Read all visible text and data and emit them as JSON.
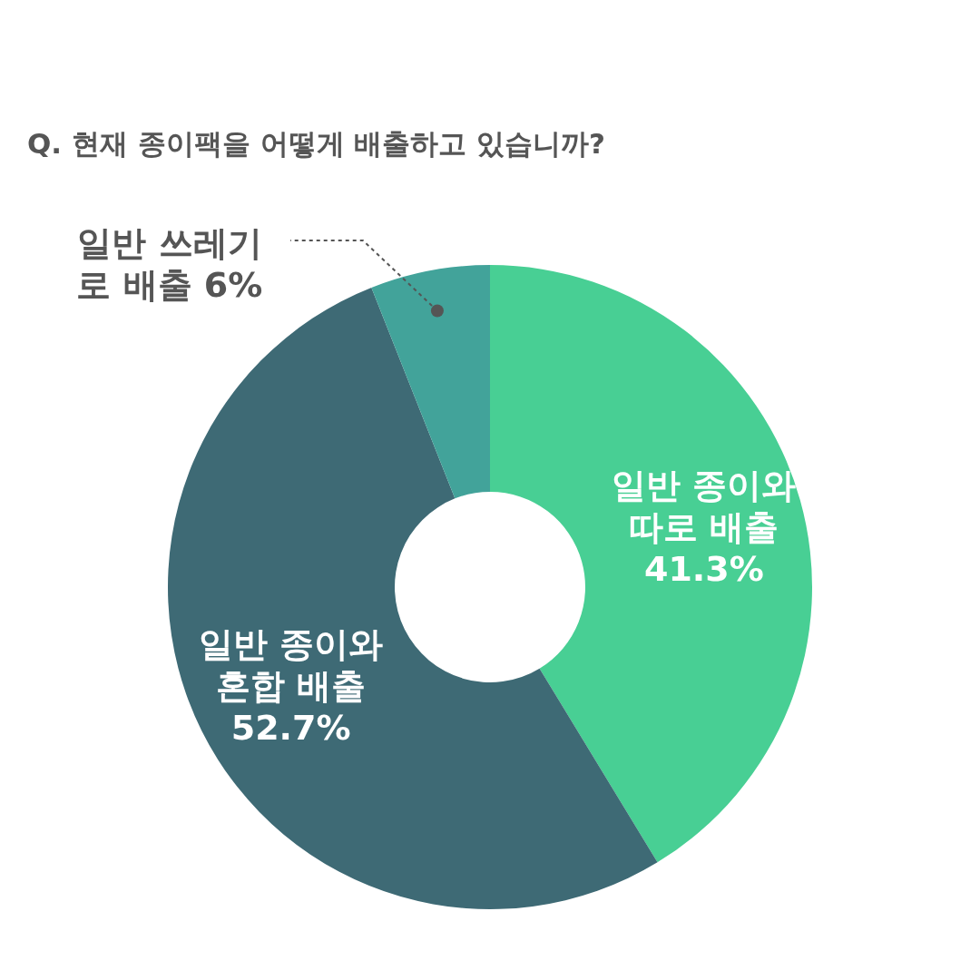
{
  "chart_data": {
    "type": "donut",
    "title": "Q. 현재 종이팩을 어떻게 배출하고 있습니까?",
    "categories": [
      "일반 종이와 따로 배출",
      "일반 종이와 혼합 배출",
      "일반 쓰레기로 배출"
    ],
    "values": [
      41.3,
      52.7,
      6
    ],
    "colors": [
      "#48cf94",
      "#3e6a75",
      "#42a39a"
    ],
    "value_labels": [
      "41.3%",
      "52.7%",
      "6%"
    ]
  }
}
